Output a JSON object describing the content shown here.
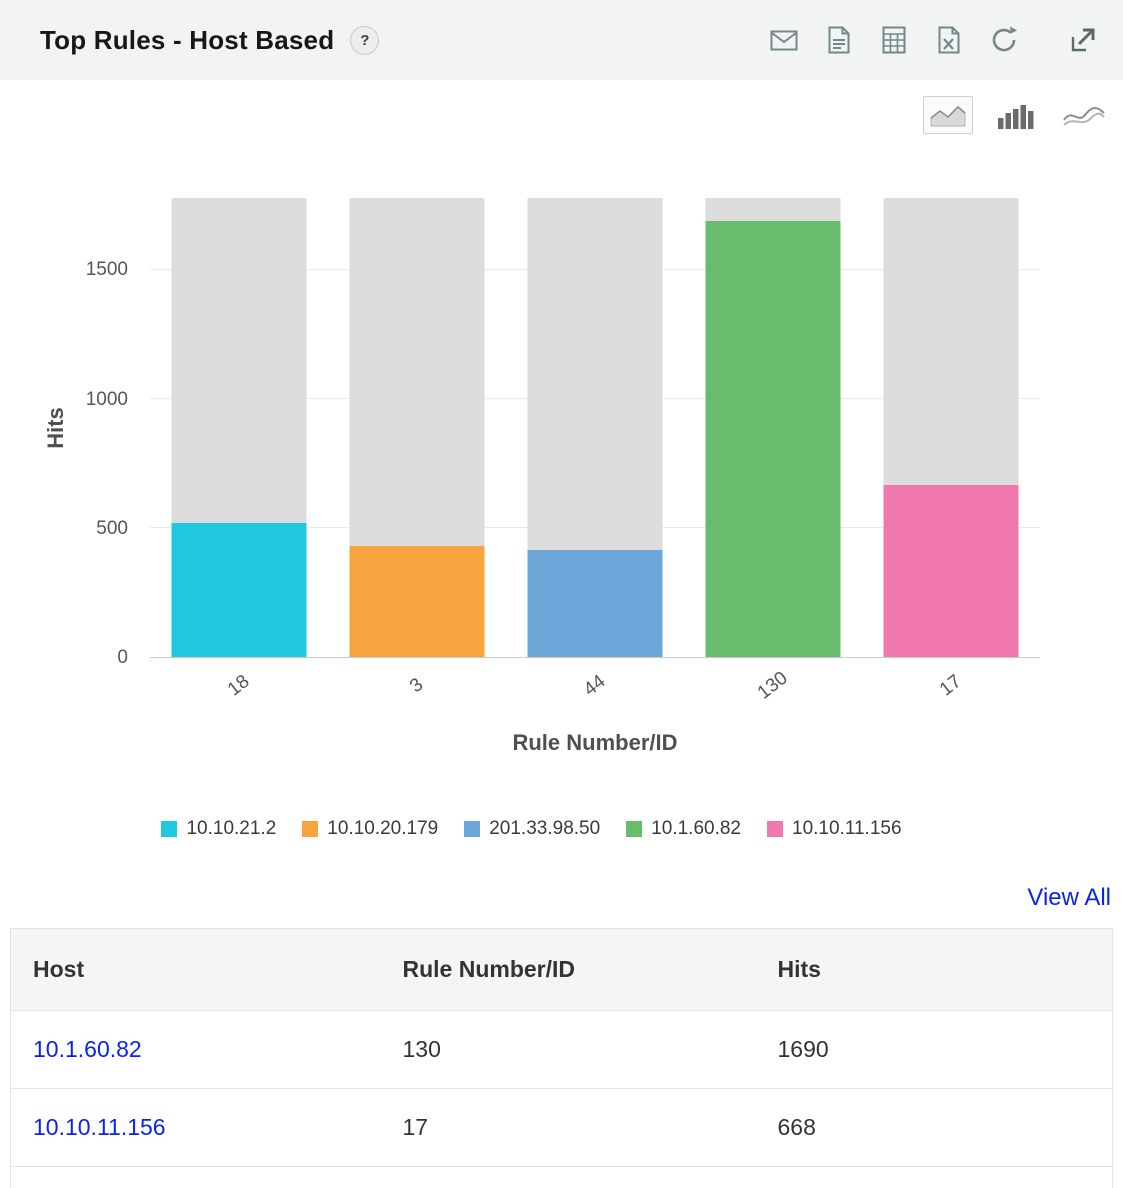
{
  "header": {
    "title": "Top Rules - Host Based",
    "help_label": "?",
    "toolbar_icons": [
      "email-icon",
      "pdf-icon",
      "csv-icon",
      "excel-icon",
      "refresh-icon",
      "expand-icon"
    ]
  },
  "chart_toggles": [
    "area-chart-icon",
    "bar-chart-icon",
    "line-chart-icon"
  ],
  "chart_data": {
    "type": "bar",
    "title": "",
    "xlabel": "Rule Number/ID",
    "ylabel": "Hits",
    "categories": [
      "18",
      "3",
      "44",
      "130",
      "17"
    ],
    "series": [
      {
        "name": "10.10.21.2",
        "value": 520,
        "color": "#1fc8e0"
      },
      {
        "name": "10.10.20.179",
        "value": 430,
        "color": "#f7a43e"
      },
      {
        "name": "201.33.98.50",
        "value": 415,
        "color": "#6ba7d9"
      },
      {
        "name": "10.1.60.82",
        "value": 1690,
        "color": "#67bd6c"
      },
      {
        "name": "10.10.11.156",
        "value": 668,
        "color": "#f078ad"
      }
    ],
    "yticks": [
      0,
      500,
      1000,
      1500
    ],
    "ylim": [
      0,
      1780
    ],
    "background_bar_color": "#dcdcdc",
    "grid": true,
    "legend_position": "bottom"
  },
  "view_all": "View All",
  "table": {
    "headers": [
      "Host",
      "Rule Number/ID",
      "Hits"
    ],
    "rows": [
      {
        "host": "10.1.60.82",
        "rule": "130",
        "hits": "1690"
      },
      {
        "host": "10.10.11.156",
        "rule": "17",
        "hits": "668"
      }
    ]
  },
  "colors": {
    "header_background": "#f2f4f4",
    "link_blue": "#0b23ee",
    "bar_background_gray": "#dcdcdc",
    "icon_gray": "#74878d"
  }
}
